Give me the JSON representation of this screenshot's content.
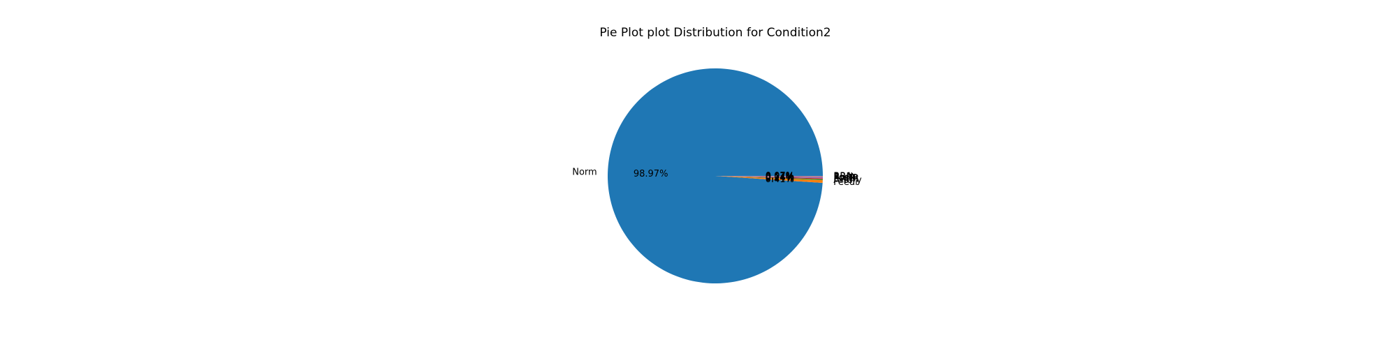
{
  "chart_data": {
    "type": "pie",
    "title": "Pie Plot plot Distribution for Condition2",
    "start_angle_deg": 0,
    "direction": "counterclockwise",
    "slices": [
      {
        "label": "Norm",
        "value": 98.97,
        "pct_label": "98.97%",
        "color": "#1f77b4"
      },
      {
        "label": "Feedr",
        "value": 0.41,
        "pct_label": "0.41%",
        "color": "#ff7f0e"
      },
      {
        "label": "Artery",
        "value": 0.14,
        "pct_label": "0.14%",
        "color": "#2ca02c"
      },
      {
        "label": "RRNn",
        "value": 0.14,
        "pct_label": "0.14%",
        "color": "#d62728"
      },
      {
        "label": "PosN",
        "value": 0.14,
        "pct_label": "0.14%",
        "color": "#9467bd"
      },
      {
        "label": "PosA",
        "value": 0.07,
        "pct_label": "0.07%",
        "color": "#8c564b"
      },
      {
        "label": "RRNe",
        "value": 0.07,
        "pct_label": "0.07%",
        "color": "#e377c2"
      },
      {
        "label": "RRAn",
        "value": 0.07,
        "pct_label": "0.07%",
        "color": "#7f7f7f"
      }
    ]
  }
}
